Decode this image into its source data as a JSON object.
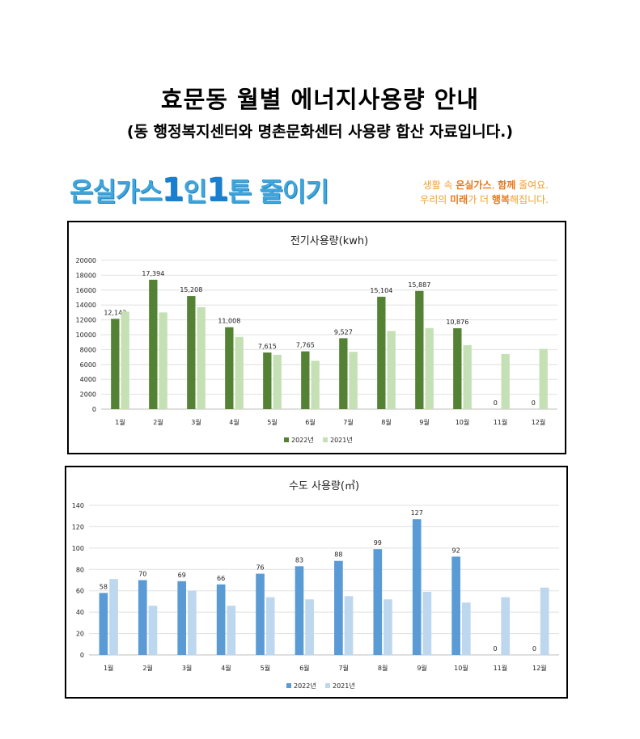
{
  "header": {
    "title": "효문동 월별 에너지사용량 안내",
    "subtitle": "(동 행정복지센터와 명촌문화센터 사용량 합산 자료입니다.)"
  },
  "campaign": {
    "part1": "온실가스",
    "part2": "1",
    "part3": "인",
    "part4": "1",
    "part5": "톤 줄이기"
  },
  "slogan": {
    "line1_a": "생활 속 ",
    "line1_b": "온실가스",
    "line1_c": ", ",
    "line1_d": "함께",
    "line1_e": " 줄여요.",
    "line2_a": "우리의 ",
    "line2_b": "미래",
    "line2_c": "가 더 ",
    "line2_d": "행복",
    "line2_e": "해집니다."
  },
  "chart_data": [
    {
      "type": "bar",
      "title": "전기사용량(kwh)",
      "categories": [
        "1월",
        "2월",
        "3월",
        "4월",
        "5월",
        "6월",
        "7월",
        "8월",
        "9월",
        "10월",
        "11월",
        "12월"
      ],
      "series": [
        {
          "name": "2022년",
          "color": "#548235",
          "values": [
            12142,
            17394,
            15208,
            11008,
            7615,
            7765,
            9527,
            15104,
            15887,
            10876,
            0,
            0
          ],
          "labels": [
            "12,142",
            "17,394",
            "15,208",
            "11,008",
            "7,615",
            "7,765",
            "9,527",
            "15,104",
            "15,887",
            "10,876",
            "0",
            "0"
          ]
        },
        {
          "name": "2021년",
          "color": "#c5e0b4",
          "values": [
            13100,
            13000,
            13700,
            9700,
            7300,
            6500,
            7700,
            10500,
            10900,
            8600,
            7400,
            8100
          ]
        }
      ],
      "ylim": [
        0,
        20000
      ],
      "yticks": [
        "0",
        "2000",
        "4000",
        "6000",
        "8000",
        "10000",
        "12000",
        "14000",
        "16000",
        "18000",
        "20000"
      ],
      "xlabel": "",
      "ylabel": "",
      "grid": true,
      "legend": "bottom"
    },
    {
      "type": "bar",
      "title": "수도 사용량(㎥)",
      "categories": [
        "1월",
        "2월",
        "3월",
        "4월",
        "5월",
        "6월",
        "7월",
        "8월",
        "9월",
        "10월",
        "11월",
        "12월"
      ],
      "series": [
        {
          "name": "2022년",
          "color": "#5b9bd5",
          "values": [
            58,
            70,
            69,
            66,
            76,
            83,
            88,
            99,
            127,
            92,
            0,
            0
          ],
          "labels": [
            "58",
            "70",
            "69",
            "66",
            "76",
            "83",
            "88",
            "99",
            "127",
            "92",
            "0",
            "0"
          ]
        },
        {
          "name": "2021년",
          "color": "#bdd7ee",
          "values": [
            71,
            46,
            60,
            46,
            54,
            52,
            55,
            52,
            59,
            49,
            54,
            63
          ]
        }
      ],
      "ylim": [
        0,
        140
      ],
      "yticks": [
        "0",
        "20",
        "40",
        "60",
        "80",
        "100",
        "120",
        "140"
      ],
      "xlabel": "",
      "ylabel": "",
      "grid": true,
      "legend": "bottom"
    }
  ]
}
